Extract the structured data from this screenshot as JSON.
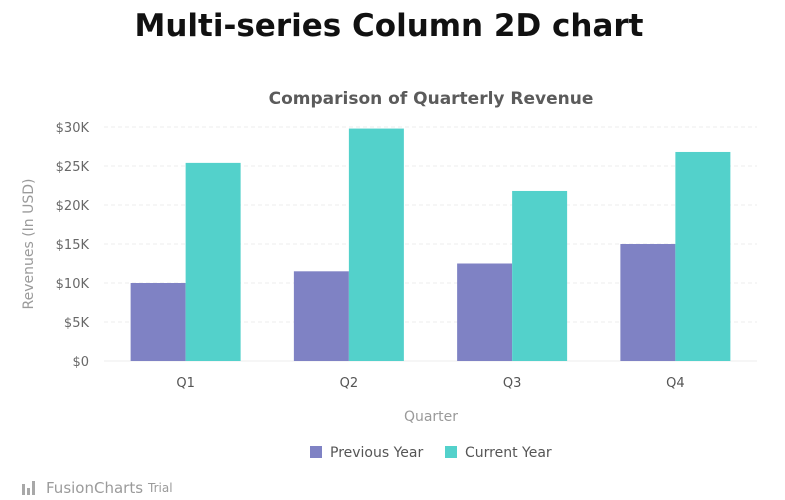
{
  "page": {
    "heading": "Multi-series Column 2D chart"
  },
  "watermark": {
    "brand": "FusionCharts",
    "trial": "Trial",
    "icon": "fusioncharts-logo-icon"
  },
  "chart_data": {
    "type": "bar",
    "title": "Comparison of Quarterly Revenue",
    "xlabel": "Quarter",
    "ylabel": "Revenues (In USD)",
    "categories": [
      "Q1",
      "Q2",
      "Q3",
      "Q4"
    ],
    "series": [
      {
        "name": "Previous Year",
        "values": [
          10000,
          11500,
          12500,
          15000
        ],
        "color": "#7f82c4"
      },
      {
        "name": "Current Year",
        "values": [
          25400,
          29800,
          21800,
          26800
        ],
        "color": "#53d1cb"
      }
    ],
    "ylim": [
      0,
      30000
    ],
    "yticks": [
      0,
      5000,
      10000,
      15000,
      20000,
      25000,
      30000
    ],
    "ytick_labels": [
      "$0",
      "$5K",
      "$10K",
      "$15K",
      "$20K",
      "$25K",
      "$30K"
    ],
    "grid": true,
    "legend_position": "bottom"
  }
}
